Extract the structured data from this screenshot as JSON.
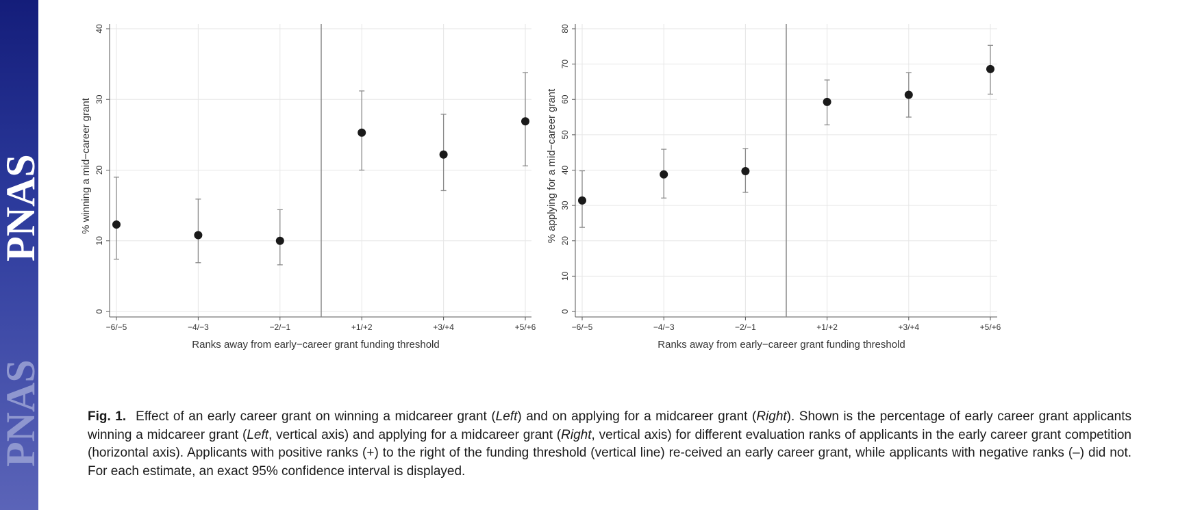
{
  "sidebar": {
    "logo_text": "PNAS PNAS"
  },
  "chart_data": [
    {
      "type": "scatter",
      "panel": "Left",
      "title": "",
      "xlabel": "Ranks away from early−career grant funding threshold",
      "ylabel": "% winning a mid−career grant",
      "categories": [
        "−6/−5",
        "−4/−3",
        "−2/−1",
        "+1/+2",
        "+3/+4",
        "+5/+6"
      ],
      "values": [
        12.3,
        10.8,
        10.0,
        25.3,
        22.2,
        26.9
      ],
      "ci_low": [
        7.4,
        6.9,
        6.6,
        20.0,
        17.1,
        20.6
      ],
      "ci_high": [
        19.0,
        15.9,
        14.4,
        31.2,
        27.9,
        33.8
      ],
      "ylim": [
        0,
        40
      ],
      "yticks": [
        0,
        10,
        20,
        30,
        40
      ],
      "grid": true,
      "threshold_line": "between −2/−1 and +1/+2"
    },
    {
      "type": "scatter",
      "panel": "Right",
      "title": "",
      "xlabel": "Ranks away from early−career grant funding threshold",
      "ylabel": "% applying for a mid−career grant",
      "categories": [
        "−6/−5",
        "−4/−3",
        "−2/−1",
        "+1/+2",
        "+3/+4",
        "+5/+6"
      ],
      "values": [
        31.4,
        38.8,
        39.7,
        59.3,
        61.3,
        68.6
      ],
      "ci_low": [
        23.8,
        32.1,
        33.7,
        52.8,
        55.0,
        61.5
      ],
      "ci_high": [
        39.8,
        45.9,
        46.1,
        65.5,
        67.6,
        75.3
      ],
      "ylim": [
        0,
        80
      ],
      "yticks": [
        0,
        10,
        20,
        30,
        40,
        50,
        60,
        70,
        80
      ],
      "grid": true,
      "threshold_line": "between −2/−1 and +1/+2"
    }
  ],
  "caption": {
    "label": "Fig. 1.",
    "p1": "Effect of an early career grant on winning a midcareer grant (",
    "left1": "Left",
    "p2": ") and on applying for a midcareer grant (",
    "right1": "Right",
    "p3": "). Shown is the percentage of early career grant applicants winning a midcareer grant (",
    "left2": "Left",
    "p4": ", vertical axis) and applying for a midcareer grant (",
    "right2": "Right",
    "p5": ", vertical axis) for different evaluation ranks of applicants in the early career grant competition (horizontal axis). Applicants with positive ranks (+) to the right of the funding threshold (vertical line) re-ceived an early career grant, while applicants with negative ranks (–) did not. For each estimate, an exact 95% confidence interval is displayed."
  }
}
